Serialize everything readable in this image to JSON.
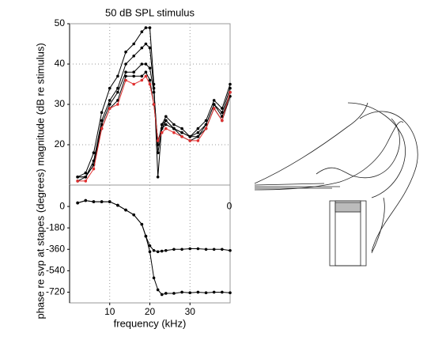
{
  "chart_data": [
    {
      "type": "line",
      "title": "50 dB SPL stimulus",
      "y_label": "magnitude (dB re stimulus)",
      "x": [
        2,
        4,
        6,
        8,
        10,
        12,
        14,
        16,
        18,
        19,
        20,
        21,
        22,
        23,
        24,
        26,
        28,
        30,
        32,
        34,
        36,
        38,
        40
      ],
      "xlim": [
        0,
        40
      ],
      "xticks": [
        10,
        20,
        30
      ],
      "ylim": [
        10,
        50
      ],
      "yticks": [
        20,
        30,
        40,
        50
      ],
      "grid": true,
      "series": [
        {
          "color": "#000000",
          "values": [
            12,
            13,
            18,
            28,
            34,
            37,
            43,
            45,
            48,
            49,
            49,
            35,
            12,
            25,
            27,
            25,
            24,
            22,
            24,
            26,
            31,
            29,
            35
          ]
        },
        {
          "color": "#000000",
          "values": [
            12,
            12,
            16,
            26,
            31,
            34,
            40,
            42,
            44,
            45,
            44,
            34,
            18,
            24,
            26,
            24,
            23,
            22,
            23,
            25,
            30,
            28,
            34
          ]
        },
        {
          "color": "#000000",
          "values": [
            12,
            12,
            15,
            25,
            30,
            33,
            38,
            38,
            40,
            40,
            39,
            33,
            20,
            25,
            26,
            24,
            23,
            22,
            22,
            25,
            30,
            27,
            33
          ]
        },
        {
          "color": "#000000",
          "values": [
            11,
            12,
            15,
            24,
            29,
            31,
            37,
            37,
            37,
            38,
            36,
            30,
            21,
            24,
            25,
            24,
            22,
            21,
            22,
            24,
            29,
            26,
            32
          ]
        },
        {
          "color": "#e03030",
          "values": [
            11,
            11,
            14,
            24,
            29,
            30,
            36,
            35,
            36,
            37,
            35,
            30,
            21,
            23,
            24,
            23,
            22,
            21,
            21,
            24,
            29,
            26,
            33
          ]
        }
      ]
    },
    {
      "type": "line",
      "y_label": "phase re svp at stapes (degrees)",
      "x_label": "frequency (kHz)",
      "annotation": "0",
      "x": [
        2,
        4,
        6,
        8,
        10,
        12,
        14,
        16,
        18,
        19,
        20,
        21,
        22,
        23,
        24,
        26,
        28,
        30,
        32,
        34,
        36,
        38,
        40
      ],
      "xlim": [
        0,
        40
      ],
      "xticks": [
        10,
        20,
        30
      ],
      "ylim": [
        -810,
        180
      ],
      "yticks": [
        0,
        -180,
        -360,
        -540,
        -720
      ],
      "grid": true,
      "series": [
        {
          "color": "#000000",
          "values": [
            30,
            50,
            40,
            40,
            40,
            10,
            -30,
            -70,
            -150,
            -250,
            -330,
            -370,
            -380,
            -375,
            -370,
            -360,
            -360,
            -355,
            -355,
            -360,
            -360,
            -360,
            -370
          ]
        },
        {
          "color": "#000000",
          "values": [
            30,
            50,
            40,
            40,
            40,
            10,
            -30,
            -70,
            -150,
            -250,
            -380,
            -600,
            -700,
            -740,
            -730,
            -730,
            -720,
            -725,
            -720,
            -725,
            -720,
            -720,
            -725
          ]
        }
      ]
    }
  ]
}
